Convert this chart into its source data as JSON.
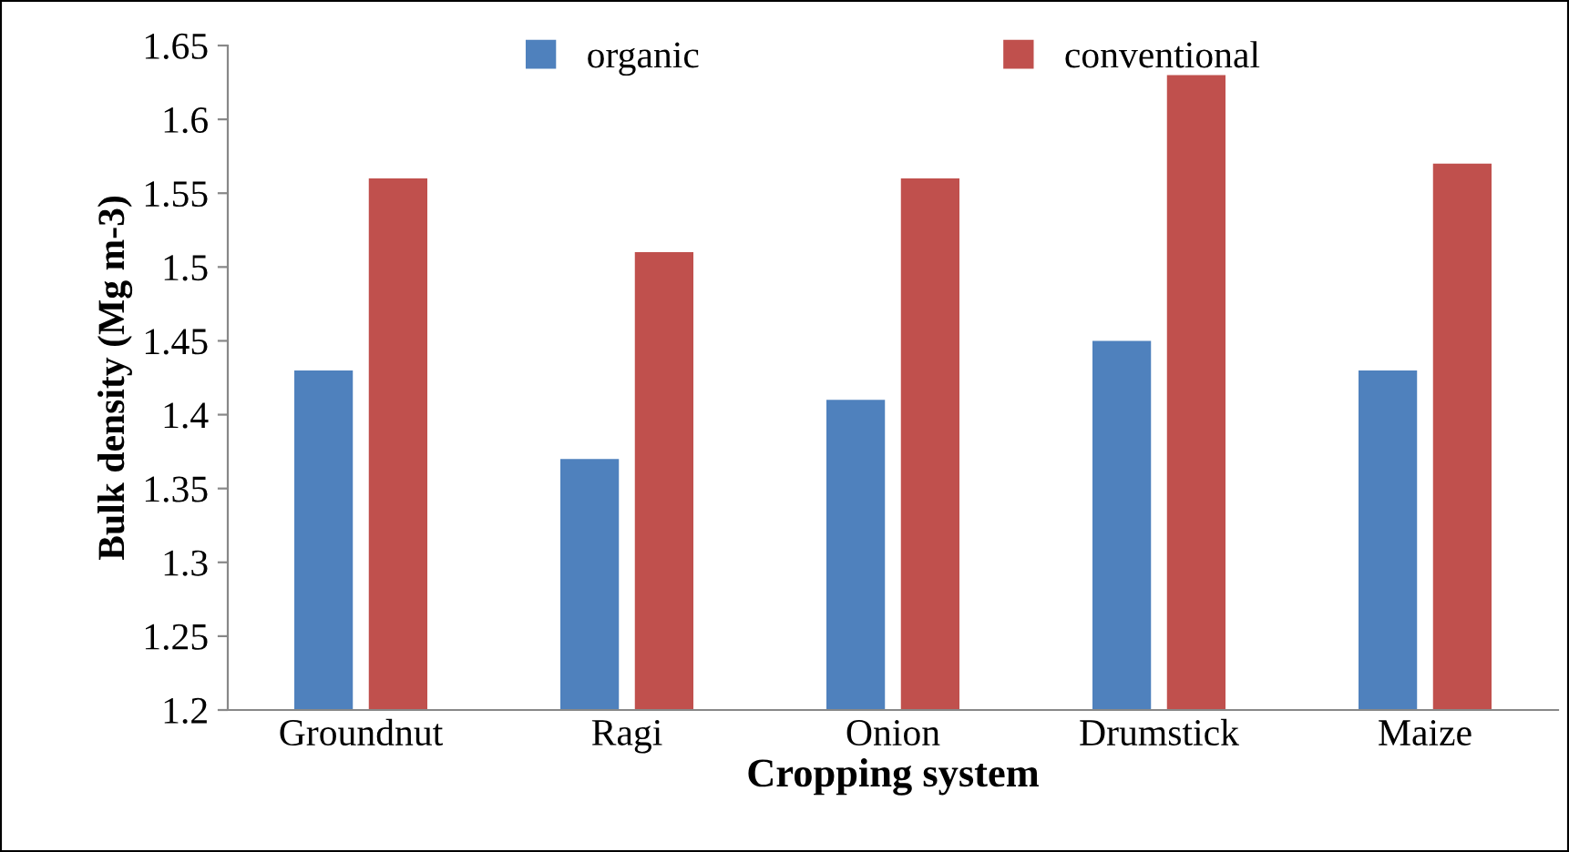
{
  "chart_data": {
    "type": "bar",
    "xlabel": "Cropping system",
    "ylabel": "Bulk density (Mg m-3)",
    "categories": [
      "Groundnut",
      "Ragi",
      "Onion",
      "Drumstick",
      "Maize"
    ],
    "series": [
      {
        "name": "organic",
        "color": "#4f81bd",
        "values": [
          1.43,
          1.37,
          1.41,
          1.45,
          1.43
        ]
      },
      {
        "name": "conventional",
        "color": "#c0504d",
        "values": [
          1.56,
          1.51,
          1.56,
          1.63,
          1.57
        ]
      }
    ],
    "ylim": [
      1.2,
      1.65
    ],
    "yticks": [
      1.2,
      1.25,
      1.3,
      1.35,
      1.4,
      1.45,
      1.5,
      1.55,
      1.6,
      1.65
    ],
    "grid": false,
    "legend": "top"
  }
}
